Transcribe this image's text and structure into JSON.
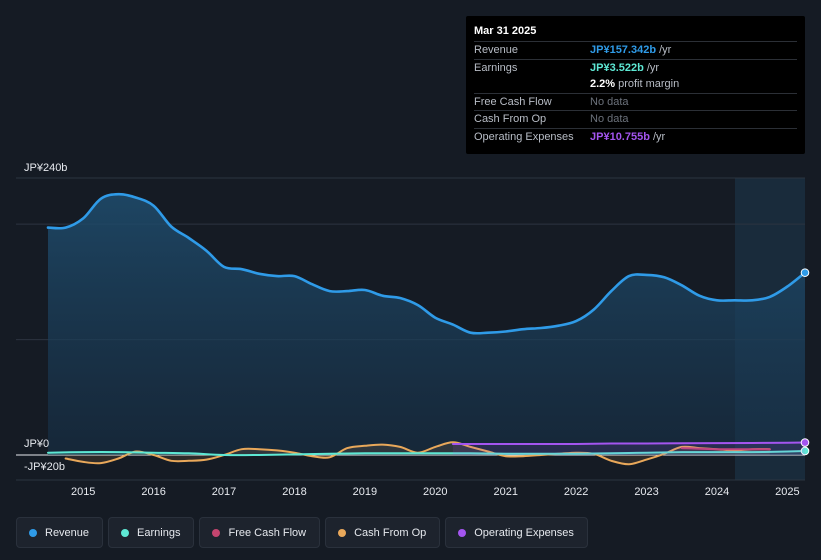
{
  "tooltip": {
    "date": "Mar 31 2025",
    "rows": [
      {
        "label": "Revenue",
        "value": "JP¥157.342b",
        "unit": "/yr",
        "color": "#2f9be8"
      },
      {
        "label": "Earnings",
        "value": "JP¥3.522b",
        "unit": "/yr",
        "color": "#5ee8d4"
      },
      {
        "label": "",
        "value": "2.2%",
        "unit": "profit margin",
        "color": "#ffffff"
      },
      {
        "label": "Free Cash Flow",
        "value": "No data"
      },
      {
        "label": "Cash From Op",
        "value": "No data"
      },
      {
        "label": "Operating Expenses",
        "value": "JP¥10.755b",
        "unit": "/yr",
        "color": "#a455f0"
      }
    ]
  },
  "chart_data": {
    "type": "line",
    "title": "",
    "xlabel": "",
    "ylabel": "",
    "y_axis_labels": {
      "top": "JP¥240b",
      "zero": "JP¥0",
      "bottom": "-JP¥20b"
    },
    "ylim": [
      -20,
      240
    ],
    "xlim": [
      2014.5,
      2025.25
    ],
    "x_ticks": [
      "2015",
      "2016",
      "2017",
      "2018",
      "2019",
      "2020",
      "2021",
      "2022",
      "2023",
      "2024",
      "2025"
    ],
    "forecast_region_start": 2024.25,
    "series": [
      {
        "name": "Revenue",
        "color": "#2f9be8",
        "x": [
          2014.5,
          2014.75,
          2015.0,
          2015.25,
          2015.5,
          2015.75,
          2016.0,
          2016.25,
          2016.5,
          2016.75,
          2017.0,
          2017.25,
          2017.5,
          2017.75,
          2018.0,
          2018.25,
          2018.5,
          2018.75,
          2019.0,
          2019.25,
          2019.5,
          2019.75,
          2020.0,
          2020.25,
          2020.5,
          2020.75,
          2021.0,
          2021.25,
          2021.5,
          2021.75,
          2022.0,
          2022.25,
          2022.5,
          2022.75,
          2023.0,
          2023.25,
          2023.5,
          2023.75,
          2024.0,
          2024.25,
          2024.5,
          2024.75,
          2025.0,
          2025.25
        ],
        "values": [
          197,
          197,
          205,
          222,
          226,
          223,
          216,
          198,
          188,
          177,
          163,
          161,
          157,
          155,
          155,
          148,
          142,
          142,
          143,
          138,
          136,
          130,
          119,
          113,
          106,
          106,
          107,
          109,
          110,
          112,
          116,
          126,
          142,
          155,
          156,
          154,
          147,
          138,
          134,
          134,
          134,
          137,
          146,
          158
        ]
      },
      {
        "name": "Earnings",
        "color": "#5ee8d4",
        "x": [
          2014.5,
          2015.0,
          2015.5,
          2016.0,
          2016.5,
          2017.0,
          2017.5,
          2018.0,
          2018.5,
          2019.0,
          2019.5,
          2020.0,
          2020.5,
          2021.0,
          2021.5,
          2022.0,
          2022.5,
          2023.0,
          2023.5,
          2024.0,
          2024.5,
          2025.0,
          2025.25
        ],
        "values": [
          2,
          2.5,
          2.5,
          2,
          1.5,
          0,
          0,
          0.5,
          1,
          1.5,
          1.5,
          1.5,
          1.5,
          1,
          1,
          1,
          1.5,
          2,
          2.5,
          2.5,
          2.5,
          3,
          3.5
        ]
      },
      {
        "name": "Free Cash Flow",
        "color": "#c4456f",
        "x": [
          2023.5,
          2024.0,
          2024.5,
          2024.75
        ],
        "values": [
          6,
          5,
          5,
          5
        ]
      },
      {
        "name": "Cash From Op",
        "color": "#e9a85a",
        "x": [
          2014.75,
          2015.0,
          2015.25,
          2015.5,
          2015.75,
          2016.0,
          2016.25,
          2016.5,
          2016.75,
          2017.0,
          2017.25,
          2017.5,
          2017.75,
          2018.0,
          2018.25,
          2018.5,
          2018.75,
          2019.0,
          2019.25,
          2019.5,
          2019.75,
          2020.0,
          2020.25,
          2020.5,
          2020.75,
          2021.0,
          2021.25,
          2021.5,
          2021.75,
          2022.0,
          2022.25,
          2022.5,
          2022.75,
          2023.0,
          2023.25,
          2023.5,
          2023.75,
          2024.0,
          2024.25,
          2024.5,
          2024.75
        ],
        "values": [
          -3,
          -6,
          -7,
          -3,
          3,
          0,
          -5,
          -5,
          -4,
          0,
          5,
          5,
          4,
          2,
          -1,
          -2,
          6,
          8,
          9,
          7,
          2,
          7,
          11,
          7,
          3,
          -1,
          -1,
          0,
          1,
          2,
          1,
          -5,
          -8,
          -4,
          1,
          7,
          6,
          5,
          4,
          5,
          5
        ]
      },
      {
        "name": "Operating Expenses",
        "color": "#a455f0",
        "x": [
          2020.25,
          2020.5,
          2021.0,
          2021.5,
          2022.0,
          2022.5,
          2023.0,
          2023.5,
          2024.0,
          2024.5,
          2025.0,
          2025.25
        ],
        "values": [
          9.5,
          9.5,
          9.5,
          9.5,
          9.5,
          10,
          10,
          10.2,
          10.3,
          10.4,
          10.6,
          10.8
        ]
      }
    ]
  },
  "legend": [
    {
      "label": "Revenue",
      "color": "#2f9be8"
    },
    {
      "label": "Earnings",
      "color": "#5ee8d4"
    },
    {
      "label": "Free Cash Flow",
      "color": "#c4456f"
    },
    {
      "label": "Cash From Op",
      "color": "#e9a85a"
    },
    {
      "label": "Operating Expenses",
      "color": "#a455f0"
    }
  ]
}
